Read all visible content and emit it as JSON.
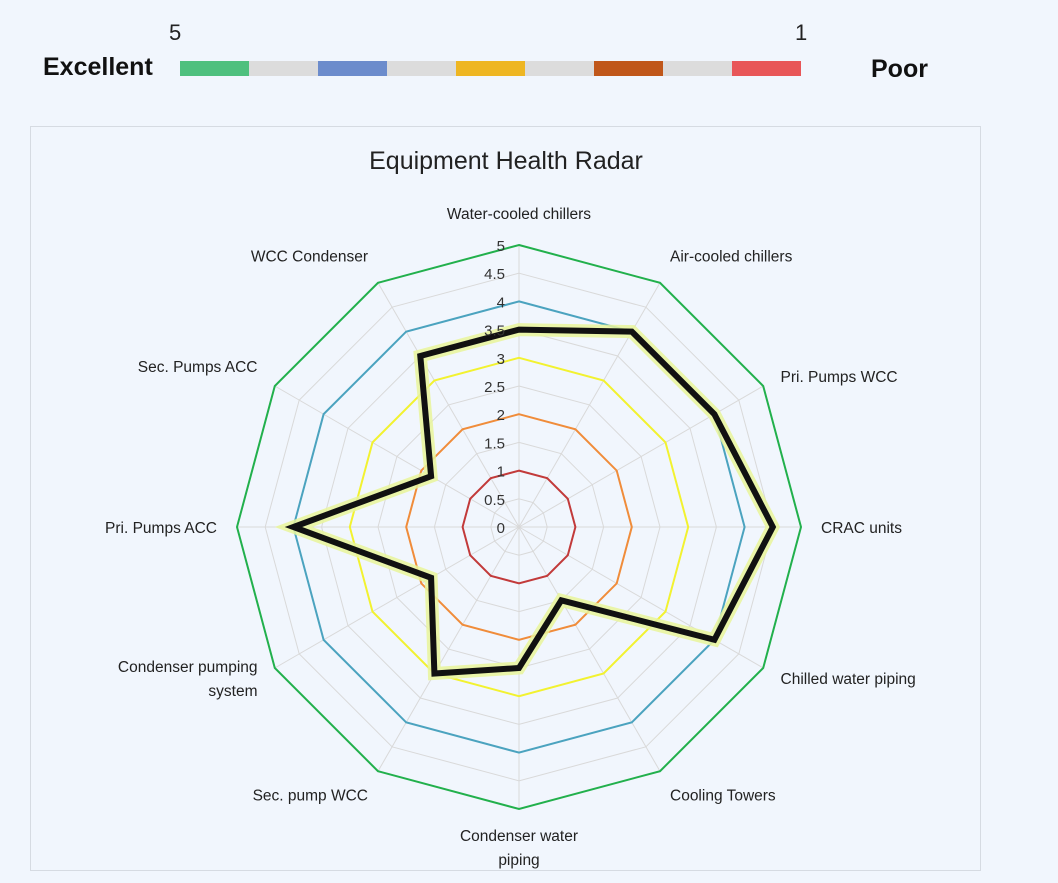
{
  "scale": {
    "left_value": "5",
    "right_value": "1",
    "left_label": "Excellent",
    "right_label": "Poor",
    "segment_colors": [
      "#4fc07e",
      "#dcdcdc",
      "#6c8ccc",
      "#dcdcdc",
      "#eeb622",
      "#dcdcdc",
      "#c0571a",
      "#dcdcdc",
      "#e85658"
    ]
  },
  "chart_data": {
    "type": "radar",
    "title": "Equipment Health Radar",
    "categories": [
      "Water-cooled chillers",
      "Air-cooled chillers",
      "Pri. Pumps WCC",
      "CRAC units",
      "Chilled water piping",
      "Cooling Towers",
      "Condenser water piping",
      "Sec. pump WCC",
      "Condenser pumping system",
      "Pri. Pumps ACC",
      "Sec. Pumps ACC",
      "WCC Condenser"
    ],
    "rlim": [
      0,
      5
    ],
    "r_ticks": [
      "0",
      "0.5",
      "1",
      "1.5",
      "2",
      "2.5",
      "3",
      "3.5",
      "4",
      "4.5",
      "5"
    ],
    "grid": true,
    "reference_series": [
      {
        "value": 5,
        "color": "#22b04c"
      },
      {
        "value": 4,
        "color": "#4ba3bf"
      },
      {
        "value": 3,
        "color": "#f2f230"
      },
      {
        "value": 2,
        "color": "#f08c3a"
      },
      {
        "value": 1,
        "color": "#c23a3a"
      }
    ],
    "series": [
      {
        "color": "#111111",
        "values": [
          3.5,
          4.0,
          4.0,
          4.5,
          4.0,
          1.5,
          2.5,
          3.0,
          1.8,
          4.0,
          1.8,
          3.5
        ]
      }
    ]
  }
}
